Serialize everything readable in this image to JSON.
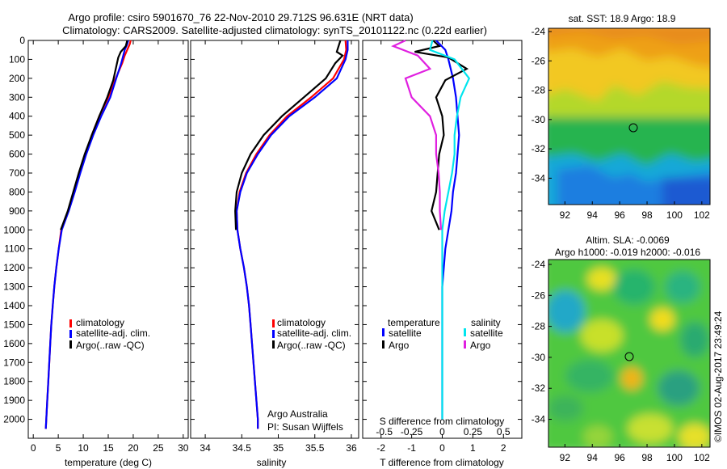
{
  "header": {
    "title_line1": "Argo profile: csiro 5901670_76 22-Nov-2010 29.712S 96.631E (NRT data)",
    "title_line2": "Climatology: CARS2009. Satellite-adjusted climatology: synTS_20101122.nc (0.22d earlier)"
  },
  "colors": {
    "climatology": "#ff0000",
    "satellite": "#0000ff",
    "argo": "#000000",
    "sat_salinity": "#00e5ee",
    "argo_salinity": "#e020e0"
  },
  "chart_data": [
    {
      "type": "line",
      "id": "temperature-profile",
      "xlabel": "temperature (deg C)",
      "ylabel": "",
      "xlim": [
        -1,
        31
      ],
      "ylim": [
        2100,
        0
      ],
      "xticks": [
        0,
        5,
        10,
        15,
        20,
        25,
        30
      ],
      "yticks": [
        0,
        100,
        200,
        300,
        400,
        500,
        600,
        700,
        800,
        900,
        1000,
        1100,
        1200,
        1300,
        1400,
        1500,
        1600,
        1700,
        1800,
        1900,
        2000
      ],
      "legend": [
        "climatology",
        "satellite-adj. clim.",
        "Argo(..raw -QC)"
      ],
      "series": [
        {
          "name": "climatology",
          "color": "#ff0000",
          "points": [
            [
              19.5,
              0
            ],
            [
              19.3,
              20
            ],
            [
              18.8,
              50
            ],
            [
              18.3,
              80
            ],
            [
              17.8,
              120
            ],
            [
              16.5,
              200
            ],
            [
              15.0,
              300
            ],
            [
              13.2,
              400
            ],
            [
              11.7,
              500
            ],
            [
              10.5,
              600
            ],
            [
              9.3,
              700
            ],
            [
              8.2,
              800
            ],
            [
              7.0,
              900
            ],
            [
              5.6,
              1000
            ],
            [
              5.1,
              1100
            ],
            [
              4.6,
              1200
            ],
            [
              4.2,
              1300
            ],
            [
              3.9,
              1400
            ],
            [
              3.6,
              1500
            ],
            [
              3.4,
              1600
            ],
            [
              3.2,
              1700
            ],
            [
              3.0,
              1800
            ],
            [
              2.8,
              1900
            ],
            [
              2.6,
              2000
            ],
            [
              2.5,
              2050
            ]
          ]
        },
        {
          "name": "satellite-adj. clim.",
          "color": "#0000ff",
          "points": [
            [
              19.0,
              0
            ],
            [
              18.8,
              20
            ],
            [
              18.3,
              50
            ],
            [
              18.0,
              80
            ],
            [
              17.6,
              120
            ],
            [
              16.6,
              200
            ],
            [
              15.4,
              300
            ],
            [
              13.6,
              400
            ],
            [
              12.0,
              500
            ],
            [
              10.6,
              600
            ],
            [
              9.4,
              700
            ],
            [
              8.3,
              800
            ],
            [
              7.1,
              900
            ],
            [
              5.7,
              1000
            ],
            [
              5.1,
              1100
            ],
            [
              4.6,
              1200
            ],
            [
              4.2,
              1300
            ],
            [
              3.9,
              1400
            ],
            [
              3.6,
              1500
            ],
            [
              3.4,
              1600
            ],
            [
              3.2,
              1700
            ],
            [
              3.0,
              1800
            ],
            [
              2.8,
              1900
            ],
            [
              2.6,
              2000
            ],
            [
              2.5,
              2050
            ]
          ]
        },
        {
          "name": "Argo(..raw -QC)",
          "color": "#000000",
          "points": [
            [
              18.8,
              0
            ],
            [
              18.5,
              30
            ],
            [
              17.5,
              60
            ],
            [
              17.0,
              90
            ],
            [
              16.5,
              150
            ],
            [
              16.0,
              210
            ],
            [
              14.8,
              300
            ],
            [
              13.2,
              400
            ],
            [
              11.7,
              500
            ],
            [
              10.3,
              600
            ],
            [
              9.1,
              700
            ],
            [
              8.0,
              800
            ],
            [
              6.9,
              900
            ],
            [
              5.5,
              1000
            ]
          ]
        }
      ]
    },
    {
      "type": "line",
      "id": "salinity-profile",
      "xlabel": "salinity",
      "xlim": [
        33.8,
        36.1
      ],
      "ylim": [
        2100,
        0
      ],
      "xticks": [
        34,
        34.5,
        35,
        35.5,
        36
      ],
      "legend": [
        "climatology",
        "satellite-adj. clim.",
        "Argo(..raw -QC)"
      ],
      "annotations": [
        "Argo Australia",
        "PI: Susan Wijffels"
      ],
      "series": [
        {
          "name": "climatology",
          "color": "#ff0000",
          "points": [
            [
              35.92,
              0
            ],
            [
              35.93,
              50
            ],
            [
              35.9,
              100
            ],
            [
              35.75,
              200
            ],
            [
              35.45,
              300
            ],
            [
              35.12,
              400
            ],
            [
              34.88,
              500
            ],
            [
              34.7,
              600
            ],
            [
              34.56,
              700
            ],
            [
              34.47,
              800
            ],
            [
              34.43,
              900
            ],
            [
              34.44,
              1000
            ],
            [
              34.48,
              1100
            ],
            [
              34.53,
              1200
            ],
            [
              34.57,
              1300
            ],
            [
              34.6,
              1400
            ],
            [
              34.62,
              1500
            ],
            [
              34.64,
              1600
            ],
            [
              34.66,
              1700
            ],
            [
              34.68,
              1800
            ],
            [
              34.7,
              1900
            ],
            [
              34.72,
              2000
            ],
            [
              34.72,
              2050
            ]
          ]
        },
        {
          "name": "satellite-adj. clim.",
          "color": "#0000ff",
          "points": [
            [
              35.95,
              0
            ],
            [
              35.95,
              50
            ],
            [
              35.92,
              100
            ],
            [
              35.8,
              200
            ],
            [
              35.5,
              300
            ],
            [
              35.15,
              400
            ],
            [
              34.9,
              500
            ],
            [
              34.72,
              600
            ],
            [
              34.57,
              700
            ],
            [
              34.48,
              800
            ],
            [
              34.43,
              900
            ],
            [
              34.44,
              1000
            ],
            [
              34.48,
              1100
            ],
            [
              34.53,
              1200
            ],
            [
              34.57,
              1300
            ],
            [
              34.6,
              1400
            ],
            [
              34.62,
              1500
            ],
            [
              34.64,
              1600
            ],
            [
              34.66,
              1700
            ],
            [
              34.68,
              1800
            ],
            [
              34.7,
              1900
            ],
            [
              34.72,
              2000
            ],
            [
              34.72,
              2050
            ]
          ]
        },
        {
          "name": "Argo(..raw -QC)",
          "color": "#000000",
          "points": [
            [
              35.85,
              0
            ],
            [
              35.8,
              60
            ],
            [
              35.88,
              80
            ],
            [
              35.78,
              120
            ],
            [
              35.65,
              200
            ],
            [
              35.35,
              300
            ],
            [
              35.05,
              400
            ],
            [
              34.8,
              500
            ],
            [
              34.62,
              600
            ],
            [
              34.5,
              700
            ],
            [
              34.43,
              800
            ],
            [
              34.41,
              900
            ],
            [
              34.42,
              1000
            ]
          ]
        }
      ]
    },
    {
      "type": "line",
      "id": "difference-profile",
      "xlabel": "T difference from climatology",
      "xlabel_top": "S difference from climatology",
      "xlim": [
        -2.6,
        2.6
      ],
      "ylim": [
        2100,
        0
      ],
      "xticks": [
        -2,
        -1,
        0,
        1,
        2
      ],
      "xticks_top": [
        "-0.5",
        "-0.25",
        "0",
        "0.25",
        "0.5"
      ],
      "legend_temperature": [
        "temperature",
        "satellite",
        "Argo"
      ],
      "legend_salinity": [
        "salinity",
        "satellite",
        "Argo"
      ],
      "series": [
        {
          "name": "satellite",
          "group": "temperature",
          "color": "#0000ff",
          "points": [
            [
              -0.2,
              0
            ],
            [
              0.1,
              50
            ],
            [
              0.2,
              100
            ],
            [
              0.35,
              200
            ],
            [
              0.45,
              300
            ],
            [
              0.5,
              400
            ],
            [
              0.55,
              500
            ],
            [
              0.5,
              600
            ],
            [
              0.45,
              700
            ],
            [
              0.35,
              800
            ],
            [
              0.3,
              900
            ],
            [
              0.2,
              1000
            ],
            [
              0.1,
              1100
            ],
            [
              0.05,
              1200
            ],
            [
              0.0,
              1300
            ],
            [
              0.0,
              1400
            ],
            [
              0.0,
              1500
            ],
            [
              0.0,
              1600
            ],
            [
              0.0,
              1700
            ],
            [
              0.0,
              1800
            ],
            [
              0.0,
              1900
            ],
            [
              0.0,
              2000
            ]
          ]
        },
        {
          "name": "Argo",
          "group": "temperature",
          "color": "#000000",
          "points": [
            [
              -0.3,
              0
            ],
            [
              -0.1,
              30
            ],
            [
              -0.9,
              60
            ],
            [
              0.2,
              90
            ],
            [
              0.8,
              150
            ],
            [
              0.1,
              210
            ],
            [
              -0.2,
              300
            ],
            [
              0.0,
              400
            ],
            [
              0.05,
              500
            ],
            [
              -0.1,
              600
            ],
            [
              -0.15,
              700
            ],
            [
              -0.2,
              800
            ],
            [
              -0.35,
              900
            ],
            [
              -0.1,
              1000
            ]
          ]
        },
        {
          "name": "satellite",
          "group": "salinity",
          "color": "#00e5ee",
          "points": [
            [
              -0.08,
              0
            ],
            [
              -0.1,
              50
            ],
            [
              0.1,
              100
            ],
            [
              0.22,
              200
            ],
            [
              0.15,
              300
            ],
            [
              0.12,
              400
            ],
            [
              0.1,
              500
            ],
            [
              0.1,
              600
            ],
            [
              0.08,
              700
            ],
            [
              0.05,
              800
            ],
            [
              0.02,
              900
            ],
            [
              0.0,
              1000
            ],
            [
              0.0,
              1100
            ],
            [
              0.0,
              1200
            ],
            [
              0.0,
              1300
            ],
            [
              0.0,
              1400
            ],
            [
              0.0,
              1500
            ],
            [
              0.0,
              1600
            ],
            [
              0.0,
              1700
            ],
            [
              0.0,
              1800
            ],
            [
              0.0,
              1900
            ],
            [
              0.0,
              2000
            ]
          ]
        },
        {
          "name": "Argo",
          "group": "salinity",
          "color": "#e020e0",
          "points": [
            [
              -0.3,
              0
            ],
            [
              -0.4,
              30
            ],
            [
              -0.2,
              80
            ],
            [
              -0.1,
              150
            ],
            [
              -0.3,
              200
            ],
            [
              -0.25,
              300
            ],
            [
              -0.1,
              400
            ],
            [
              -0.05,
              500
            ],
            [
              -0.05,
              600
            ],
            [
              -0.03,
              700
            ],
            [
              -0.02,
              800
            ],
            [
              -0.02,
              900
            ],
            [
              -0.01,
              1000
            ]
          ]
        }
      ]
    },
    {
      "type": "heatmap",
      "id": "sst-map",
      "title": "sat. SST: 18.9 Argo: 18.9",
      "xlim": [
        90.8,
        102.6
      ],
      "ylim": [
        -35.8,
        -24
      ],
      "xticks": [
        92,
        94,
        96,
        98,
        100,
        102
      ],
      "yticks": [
        -24,
        -26,
        -28,
        -30,
        -32,
        -34
      ],
      "marker": {
        "lon": 96.631,
        "lat": -29.712
      }
    },
    {
      "type": "heatmap",
      "id": "sla-map",
      "title": "Altim. SLA: -0.0069",
      "subtitle": "Argo h1000: -0.019 h2000: -0.016",
      "xlim": [
        90.8,
        102.6
      ],
      "ylim": [
        -35.8,
        -24
      ],
      "xticks": [
        92,
        94,
        96,
        98,
        100,
        102
      ],
      "yticks": [
        -24,
        -26,
        -28,
        -30,
        -32,
        -34
      ],
      "marker": {
        "lon": 96.631,
        "lat": -29.712
      }
    }
  ],
  "footer": {
    "credit": "©IMOS 02-Aug-2017 23:49:24"
  }
}
